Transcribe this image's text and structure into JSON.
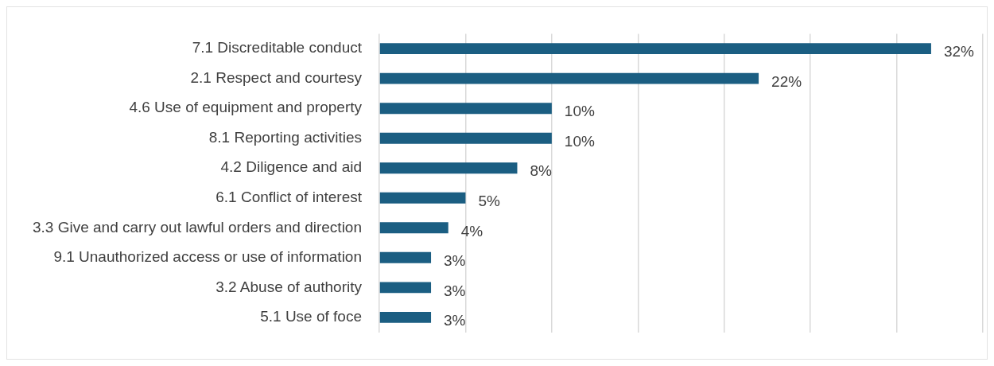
{
  "chart_data": {
    "type": "bar",
    "orientation": "horizontal",
    "categories": [
      "7.1 Discreditable conduct",
      "2.1 Respect and courtesy",
      "4.6 Use of equipment and property",
      "8.1 Reporting activities",
      "4.2 Diligence and aid",
      "6.1 Conflict of interest",
      "3.3 Give and carry out lawful orders and direction",
      "9.1 Unauthorized access or use of information",
      "3.2 Abuse of authority",
      "5.1 Use of foce"
    ],
    "values": [
      32,
      22,
      10,
      10,
      8,
      5,
      4,
      3,
      3,
      3
    ],
    "value_labels": [
      "32%",
      "22%",
      "10%",
      "10%",
      "8%",
      "5%",
      "4%",
      "3%",
      "3%",
      "3%"
    ],
    "color": "#1b5e82",
    "xlim": [
      0,
      35
    ],
    "xticks": [
      {
        "value": 0,
        "label": null
      },
      {
        "value": 5,
        "label": null
      },
      {
        "value": 10,
        "label": null
      },
      {
        "value": 15,
        "label": null
      },
      {
        "value": 20,
        "label": null
      },
      {
        "value": 25,
        "label": null
      },
      {
        "value": 30,
        "label": null
      },
      {
        "value": 35,
        "label": null
      }
    ],
    "grid": "x",
    "tick_labels": "y",
    "legend": false
  }
}
